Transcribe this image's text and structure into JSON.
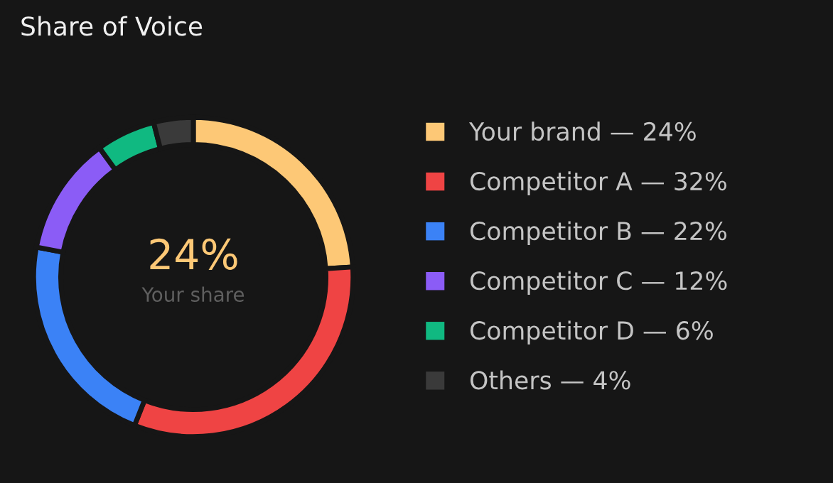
{
  "chart_data": {
    "type": "donut",
    "title": "Share of Voice",
    "categories": [
      "Your brand — 24%",
      "Competitor A — 32%",
      "Competitor B — 22%",
      "Competitor C — 12%",
      "Competitor D — 6%",
      "Others — 4%"
    ],
    "values": [
      24,
      32,
      22,
      12,
      6,
      4
    ],
    "colors": [
      "#fdc876",
      "#ef4444",
      "#3b82f6",
      "#8b5cf6",
      "#10b981",
      "#3a3a3a"
    ],
    "annotations": [
      "24%",
      "Your share"
    ],
    "legend": "right"
  }
}
